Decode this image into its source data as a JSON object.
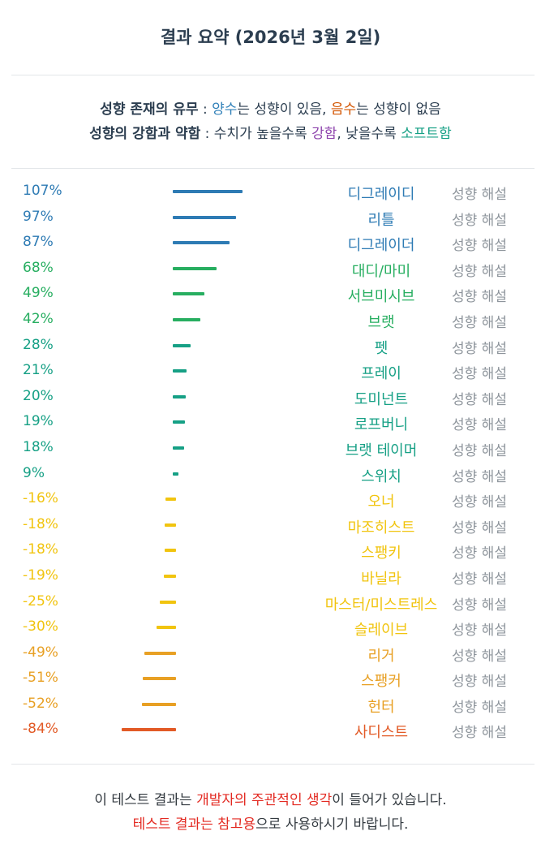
{
  "title": "결과 요약 (2026년 3월 2일)",
  "legend": {
    "line1": {
      "label": "성향 존재의 유무",
      "sep": " : ",
      "positive": "양수",
      "positive_rest": "는 성향이 있음, ",
      "negative": "음수",
      "negative_rest": "는 성향이 없음"
    },
    "line2": {
      "label": "성향의 강함과 약함",
      "sep": " : ",
      "rest1": "수치가 높을수록 ",
      "strong": "강함",
      "rest2": ", 낮을수록 ",
      "soft": "소프트함"
    },
    "colors": {
      "positive": "#2e7fb8",
      "negative": "#d35400",
      "strong": "#8e44ad",
      "soft": "#16a085"
    }
  },
  "explain_label": "성향 해설",
  "results": [
    {
      "percent": "107%",
      "value": 107,
      "name": "디그레이디",
      "color": "#2e7bb4"
    },
    {
      "percent": "97%",
      "value": 97,
      "name": "리틀",
      "color": "#2e7bb4"
    },
    {
      "percent": "87%",
      "value": 87,
      "name": "디그레이더",
      "color": "#2e7bb4"
    },
    {
      "percent": "68%",
      "value": 68,
      "name": "대디/마미",
      "color": "#27ae60"
    },
    {
      "percent": "49%",
      "value": 49,
      "name": "서브미시브",
      "color": "#27ae60"
    },
    {
      "percent": "42%",
      "value": 42,
      "name": "브랫",
      "color": "#27ae60"
    },
    {
      "percent": "28%",
      "value": 28,
      "name": "펫",
      "color": "#16a085"
    },
    {
      "percent": "21%",
      "value": 21,
      "name": "프레이",
      "color": "#16a085"
    },
    {
      "percent": "20%",
      "value": 20,
      "name": "도미넌트",
      "color": "#16a085"
    },
    {
      "percent": "19%",
      "value": 19,
      "name": "로프버니",
      "color": "#16a085"
    },
    {
      "percent": "18%",
      "value": 18,
      "name": "브랫 테이머",
      "color": "#16a085"
    },
    {
      "percent": "9%",
      "value": 9,
      "name": "스위치",
      "color": "#16a085"
    },
    {
      "percent": "-16%",
      "value": -16,
      "name": "오너",
      "color": "#f1c40f"
    },
    {
      "percent": "-18%",
      "value": -18,
      "name": "마조히스트",
      "color": "#f1c40f"
    },
    {
      "percent": "-18%",
      "value": -18,
      "name": "스팽키",
      "color": "#f1c40f"
    },
    {
      "percent": "-19%",
      "value": -19,
      "name": "바닐라",
      "color": "#f1c40f"
    },
    {
      "percent": "-25%",
      "value": -25,
      "name": "마스터/미스트레스",
      "color": "#f1c40f"
    },
    {
      "percent": "-30%",
      "value": -30,
      "name": "슬레이브",
      "color": "#f1c40f"
    },
    {
      "percent": "-49%",
      "value": -49,
      "name": "리거",
      "color": "#e8a024"
    },
    {
      "percent": "-51%",
      "value": -51,
      "name": "스팽커",
      "color": "#e8a024"
    },
    {
      "percent": "-52%",
      "value": -52,
      "name": "헌터",
      "color": "#e8a024"
    },
    {
      "percent": "-84%",
      "value": -84,
      "name": "사디스트",
      "color": "#e25a26"
    }
  ],
  "footer": {
    "line1": {
      "before": "이 테스트 결과는 ",
      "highlight": "개발자의 주관적인 생각",
      "after": "이 들어가 있습니다."
    },
    "line2": {
      "highlight1": "테스트 결과는 참고용",
      "after": "으로 사용하시기 바랍니다."
    },
    "highlight_color": "#e32a22"
  }
}
